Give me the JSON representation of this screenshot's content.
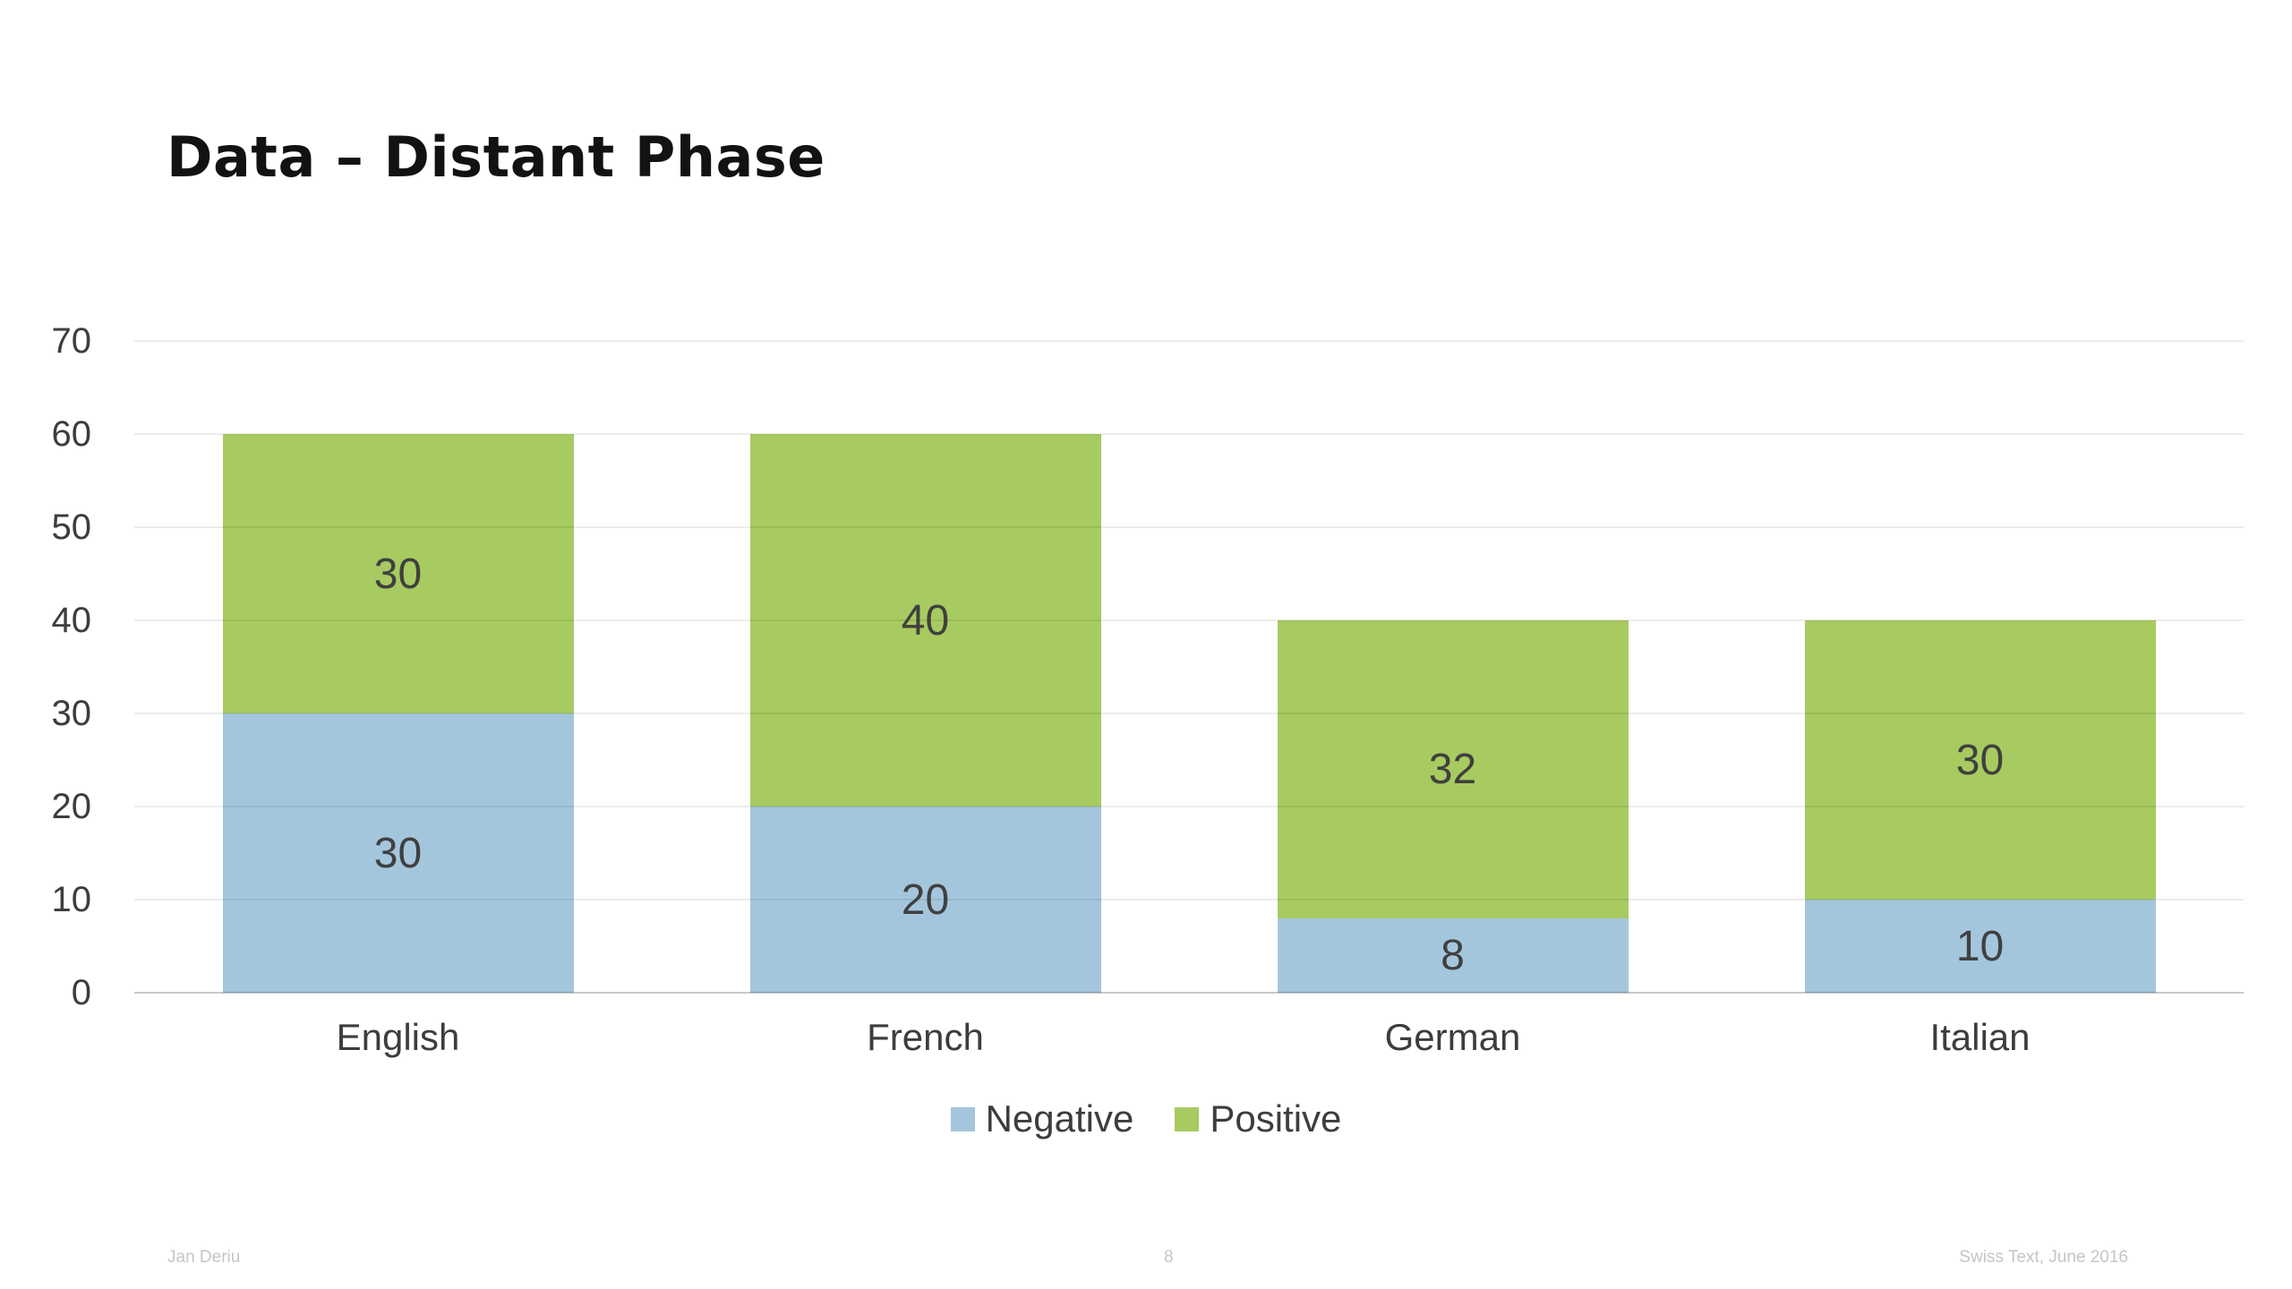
{
  "slide": {
    "title": "Data – Distant Phase",
    "footer": {
      "author": "Jan Deriu",
      "page_number": "8",
      "venue": "Swiss Text, June 2016"
    }
  },
  "chart_data": {
    "type": "bar",
    "stacked": true,
    "title": "",
    "xlabel": "",
    "ylabel": "",
    "categories": [
      "English",
      "French",
      "German",
      "Italian"
    ],
    "series": [
      {
        "name": "Negative",
        "color": "#a4c6dd",
        "values": [
          30,
          20,
          8,
          10
        ]
      },
      {
        "name": "Positive",
        "color": "#a7cb60",
        "values": [
          30,
          40,
          32,
          30
        ]
      }
    ],
    "totals": [
      60,
      60,
      40,
      40
    ],
    "ylim": [
      0,
      70
    ],
    "yticks": [
      0,
      10,
      20,
      30,
      40,
      50,
      60,
      70
    ],
    "grid": true,
    "data_labels": true,
    "legend_position": "bottom"
  },
  "colors": {
    "title_text": "#121212",
    "axis_text": "#3d3d3d",
    "data_label_text": "#404040",
    "footer_text": "#c5c5c5",
    "negative_blue": "#a4c6dd",
    "positive_green": "#a7cb60"
  }
}
